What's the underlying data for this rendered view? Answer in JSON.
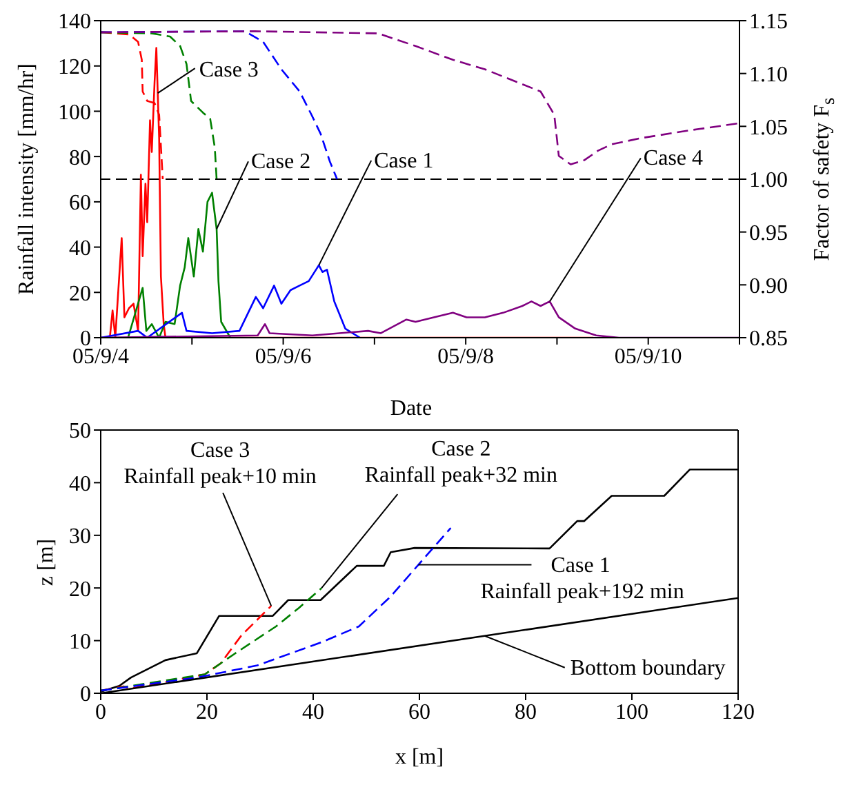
{
  "chart_data": [
    {
      "type": "line",
      "xlabel": "Date",
      "ylabel": "Rainfall intensity [mm/hr]",
      "y2label": "Factor of safety F$_{s}$",
      "xlim": [
        "--09-04",
        "--09-11"
      ],
      "xticks": [
        {
          "value": "--09-04",
          "label": "05/9/4"
        },
        {
          "value": "--09-05",
          "label": null
        },
        {
          "value": "--09-06",
          "label": "05/9/6"
        },
        {
          "value": "--09-07",
          "label": null
        },
        {
          "value": "--09-08",
          "label": "05/9/8"
        },
        {
          "value": "--09-09",
          "label": null
        },
        {
          "value": "--09-10",
          "label": "05/9/10"
        },
        {
          "value": "--09-11",
          "label": null
        }
      ],
      "ylim": [
        0,
        140
      ],
      "yticks": [
        0,
        20,
        40,
        60,
        80,
        100,
        120,
        140
      ],
      "y2lim": [
        0.85,
        1.15
      ],
      "y2ticks": [
        0.85,
        {
          "value": 0.9,
          "label": "0.90"
        },
        0.95,
        {
          "value": 1.0,
          "label": "1.00"
        },
        1.05,
        {
          "value": 1.1,
          "label": "1.10"
        },
        1.15
      ],
      "marker": "none",
      "series": [
        {
          "color": "#ff0000",
          "line_style": "solid",
          "x": [
            "--09-04T00:00",
            "--09-04T02:24",
            "--09-04T03:07",
            "--09-04T03:50",
            "--09-04T05:31",
            "--09-04T06:14",
            "--09-04T07:26",
            "--09-04T08:38",
            "--09-04T09:50",
            "--09-04T10:34",
            "--09-04T11:02",
            "--09-04T11:46",
            "--09-04T12:14",
            "--09-04T12:58",
            "--09-04T13:26",
            "--09-04T14:10",
            "--09-04T14:38",
            "--09-04T15:22",
            "--09-04T15:50",
            "--09-04T16:34",
            "--09-04T17:02",
            "--09-09T09:36"
          ],
          "values": [
            0,
            0,
            12,
            0,
            44,
            9,
            13,
            15,
            3,
            72,
            36,
            68,
            51,
            96,
            82,
            113,
            128,
            88,
            27,
            6,
            0,
            0
          ]
        },
        {
          "color": "#008000",
          "line_style": "solid",
          "x": [
            "--09-04T00:00",
            "--09-04T07:12",
            "--09-04T11:02",
            "--09-04T12:00",
            "--09-04T13:26",
            "--09-04T15:22",
            "--09-04T17:02",
            "--09-04T19:26",
            "--09-04T20:53",
            "--09-04T22:05",
            "--09-04T23:02",
            "--09-05T00:29",
            "--09-05T01:41",
            "--09-05T02:53",
            "--09-05T04:05",
            "--09-05T05:17",
            "--09-05T06:29",
            "--09-05T06:58",
            "--09-05T07:41",
            "--09-05T10:05"
          ],
          "values": [
            0,
            0,
            22,
            3,
            6,
            0,
            7,
            6,
            23,
            31,
            44,
            27,
            48,
            38,
            60,
            64,
            48,
            25,
            7,
            0
          ]
        },
        {
          "color": "#0000ff",
          "line_style": "solid",
          "x": [
            "--09-04T00:00",
            "--09-04T09:50",
            "--09-04T12:14",
            "--09-04T21:22",
            "--09-04T22:34",
            "--09-05T05:17",
            "--09-05T12:29",
            "--09-05T16:48",
            "--09-05T18:43",
            "--09-05T21:36",
            "--09-05T23:31",
            "--09-06T01:55",
            "--09-06T04:19",
            "--09-06T06:43",
            "--09-06T09:22",
            "--09-06T10:19",
            "--09-06T11:31",
            "--09-06T13:26",
            "--09-06T14:38",
            "--09-06T16:19",
            "--09-06T20:10"
          ],
          "values": [
            0,
            3,
            0,
            11,
            3,
            2,
            3,
            18,
            13,
            23,
            15,
            21,
            23,
            25,
            32,
            29,
            30,
            16,
            11,
            4,
            0
          ]
        },
        {
          "color": "#800080",
          "line_style": "solid",
          "x": [
            "--09-04T00:00",
            "--09-05T17:17",
            "--09-05T19:12",
            "--09-05T20:24",
            "--09-06T07:41",
            "--09-06T22:19",
            "--09-07T01:41",
            "--09-07T08:24",
            "--09-07T10:48",
            "--09-07T15:36",
            "--09-07T20:38",
            "--09-08T00:14",
            "--09-08T05:02",
            "--09-08T09:50",
            "--09-08T14:53",
            "--09-08T17:17",
            "--09-08T19:41",
            "--09-08T22:05",
            "--09-09T00:29",
            "--09-09T04:48",
            "--09-09T10:19",
            "--09-09T16:19",
            "--09-11T00:00"
          ],
          "values": [
            0,
            1,
            6,
            2,
            1,
            3,
            2,
            8,
            7,
            9,
            11,
            9,
            9,
            11,
            14,
            16,
            14,
            16,
            9,
            4,
            1,
            0,
            0
          ]
        },
        {
          "color": "#ff0000",
          "line_style": "dashed",
          "axis": "y2",
          "x": [
            "--09-04T00:00",
            "--09-04T07:26",
            "--09-04T09:50",
            "--09-04T10:48",
            "--09-04T11:02",
            "--09-04T12:14",
            "--09-04T14:10",
            "--09-04T15:22",
            "--09-04T16:19"
          ],
          "values": [
            1.139,
            1.137,
            1.13,
            1.113,
            1.083,
            1.074,
            1.072,
            1.061,
            1.0
          ]
        },
        {
          "color": "#008000",
          "line_style": "dashed",
          "axis": "y2",
          "x": [
            "--09-04T00:00",
            "--09-04T13:26",
            "--09-04T18:14",
            "--09-04T20:53",
            "--09-04T22:34",
            "--09-04T23:46",
            "--09-05T02:53",
            "--09-05T04:48",
            "--09-05T06:00",
            "--09-05T06:29"
          ],
          "values": [
            1.139,
            1.138,
            1.135,
            1.126,
            1.109,
            1.074,
            1.063,
            1.057,
            1.03,
            1.0
          ]
        },
        {
          "color": "#0000ff",
          "line_style": "dashed",
          "axis": "y2",
          "x": [
            "--09-04T00:00",
            "--09-05T13:55",
            "--09-05T18:43",
            "--09-05T23:31",
            "--09-06T04:19",
            "--09-06T07:26",
            "--09-06T09:50",
            "--09-06T12:14",
            "--09-06T14:10"
          ],
          "values": [
            1.139,
            1.14,
            1.13,
            1.104,
            1.083,
            1.061,
            1.043,
            1.017,
            1.0
          ]
        },
        {
          "color": "#800080",
          "line_style": "dashed",
          "axis": "y2",
          "x": [
            "--09-04T00:00",
            "--09-05T16:34",
            "--09-07T00:58",
            "--09-07T10:48",
            "--09-07T20:38",
            "--09-08T05:02",
            "--09-08T19:41",
            "--09-08T23:17",
            "--09-09T00:29",
            "--09-09T03:36",
            "--09-09T07:12",
            "--09-09T10:48",
            "--09-09T14:24",
            "--09-09T22:19",
            "--09-10T10:34",
            "--09-11T00:00"
          ],
          "values": [
            1.139,
            1.14,
            1.138,
            1.126,
            1.113,
            1.104,
            1.083,
            1.061,
            1.022,
            1.014,
            1.018,
            1.027,
            1.033,
            1.039,
            1.046,
            1.053
          ]
        }
      ],
      "ref_lines": [
        {
          "axis": "y2",
          "value": 1.0,
          "color": "#000000",
          "line_style": "dashed"
        }
      ],
      "annotations": [
        {
          "text": "Case 3",
          "x": "--09-04T15:00",
          "y": 108
        },
        {
          "text": "Case 2",
          "x": "--09-05T06:29",
          "y": 48
        },
        {
          "text": "Case 1",
          "x": "--09-06T09:22",
          "y": 32
        },
        {
          "text": "Case 4",
          "x": "--09-08T22:05",
          "y": 16
        }
      ]
    },
    {
      "type": "line",
      "xlabel": "x [m]",
      "ylabel": "z [m]",
      "xlim": [
        0,
        120
      ],
      "xticks": [
        0,
        20,
        40,
        60,
        80,
        100,
        120
      ],
      "ylim": [
        0,
        50
      ],
      "yticks": [
        0,
        10,
        20,
        30,
        40,
        50
      ],
      "marker": "none",
      "series": [
        {
          "color": "#000000",
          "line_style": "solid",
          "x": [
            0,
            3.5,
            5.7,
            12.2,
            18.1,
            22.3,
            32.4,
            35.3,
            41.4,
            48.2,
            53.3,
            54.6,
            59.1,
            84.5,
            89.7,
            91,
            96.2,
            106.1,
            110.9,
            120
          ],
          "values": [
            0.3,
            1.4,
            3,
            6.3,
            7.6,
            14.7,
            14.7,
            17.7,
            17.7,
            24.2,
            24.2,
            26.8,
            27.6,
            27.5,
            32.7,
            32.7,
            37.5,
            37.5,
            42.5,
            42.5
          ]
        },
        {
          "color": "#ff0000",
          "line_style": "dashed",
          "x": [
            0,
            4.3,
            5.7,
            19.6,
            22.6,
            26.5,
            32.1
          ],
          "values": [
            0.5,
            1.3,
            0.9,
            3.6,
            5.7,
            11,
            16.6
          ]
        },
        {
          "color": "#008000",
          "line_style": "dashed",
          "x": [
            0,
            19.6,
            25.2,
            33,
            37.3,
            41.6
          ],
          "values": [
            0.5,
            3.6,
            7.5,
            12.7,
            16.2,
            20
          ]
        },
        {
          "color": "#0000ff",
          "line_style": "dashed",
          "x": [
            0,
            18.2,
            29.5,
            41.6,
            48.6,
            54.6,
            59.8,
            65.9
          ],
          "values": [
            0.5,
            3,
            5.3,
            9.7,
            12.7,
            18.4,
            24.4,
            31.4
          ]
        },
        {
          "color": "#000000",
          "line_style": "solid",
          "x": [
            0,
            120
          ],
          "values": [
            0,
            18.1
          ]
        }
      ],
      "annotations": [
        {
          "text": "Case 3\nRainfall peak+10 min",
          "x": 32.1,
          "y": 16.6
        },
        {
          "text": "Case 2\nRainfall peak+32 min",
          "x": 41.6,
          "y": 20
        },
        {
          "text": "Case 1\nRainfall peak+192 min",
          "x": 59.8,
          "y": 24.4
        },
        {
          "text": "Bottom boundary",
          "x": 72.3,
          "y": 10.9
        }
      ]
    }
  ]
}
